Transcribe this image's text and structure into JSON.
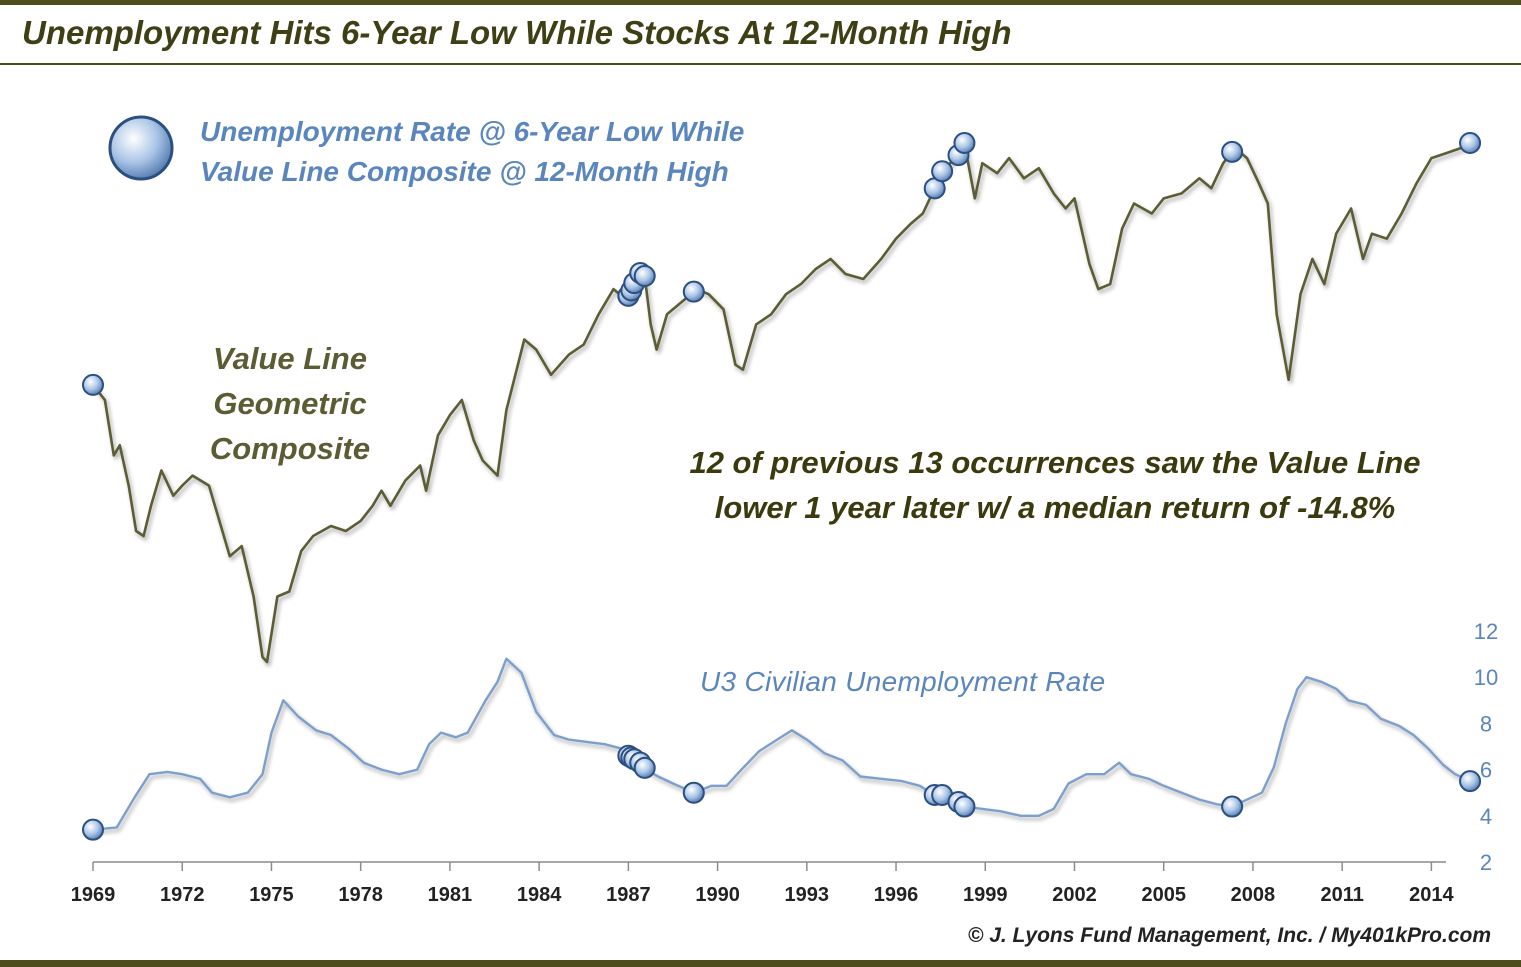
{
  "title": "Unemployment Hits 6-Year Low While Stocks At 12-Month High",
  "legend": {
    "line1": "Unemployment Rate @ 6-Year Low While",
    "line2": "Value Line Composite @ 12-Month High"
  },
  "value_line_label": {
    "line1": "Value Line",
    "line2": "Geometric",
    "line3": "Composite"
  },
  "annotation": {
    "line1": "12 of previous 13 occurrences saw the Value Line",
    "line2": "lower 1 year later w/ a median return of -14.8%"
  },
  "u3_label": "U3 Civilian Unemployment Rate",
  "footer": "© J. Lyons Fund Management, Inc. / My401kPro.com",
  "colors": {
    "value_line": "#5c5c34",
    "unemployment": "#7d9fcc",
    "accent_text": "#5a86bd",
    "marker_fill": "#a9c4e6",
    "marker_stroke": "#2b4f80"
  },
  "chart_data": {
    "type": "line",
    "x_axis": {
      "range": [
        1969,
        2015.5
      ],
      "ticks": [
        1969,
        1972,
        1975,
        1978,
        1981,
        1984,
        1987,
        1990,
        1993,
        1996,
        1999,
        2002,
        2005,
        2008,
        2011,
        2014
      ]
    },
    "y_axis_right": {
      "label": "U3 Civilian Unemployment Rate",
      "range": [
        2,
        12
      ],
      "ticks": [
        2,
        4,
        6,
        8,
        10,
        12
      ]
    },
    "series": [
      {
        "name": "Value Line Geometric Composite",
        "scale": "relative index (no axis shown)",
        "points": [
          [
            1969.0,
            6.6
          ],
          [
            1969.4,
            6.45
          ],
          [
            1969.7,
            5.9
          ],
          [
            1969.9,
            6.0
          ],
          [
            1970.2,
            5.6
          ],
          [
            1970.45,
            5.15
          ],
          [
            1970.7,
            5.1
          ],
          [
            1970.95,
            5.4
          ],
          [
            1971.3,
            5.75
          ],
          [
            1971.7,
            5.5
          ],
          [
            1972.0,
            5.6
          ],
          [
            1972.35,
            5.7
          ],
          [
            1972.9,
            5.6
          ],
          [
            1973.2,
            5.3
          ],
          [
            1973.6,
            4.9
          ],
          [
            1974.0,
            5.0
          ],
          [
            1974.4,
            4.5
          ],
          [
            1974.7,
            3.9
          ],
          [
            1974.85,
            3.85
          ],
          [
            1975.2,
            4.5
          ],
          [
            1975.6,
            4.55
          ],
          [
            1976.0,
            4.95
          ],
          [
            1976.4,
            5.1
          ],
          [
            1977.0,
            5.2
          ],
          [
            1977.5,
            5.15
          ],
          [
            1978.0,
            5.25
          ],
          [
            1978.4,
            5.4
          ],
          [
            1978.7,
            5.55
          ],
          [
            1979.0,
            5.4
          ],
          [
            1979.5,
            5.65
          ],
          [
            1980.0,
            5.8
          ],
          [
            1980.2,
            5.55
          ],
          [
            1980.6,
            6.1
          ],
          [
            1981.0,
            6.3
          ],
          [
            1981.4,
            6.45
          ],
          [
            1981.8,
            6.05
          ],
          [
            1982.1,
            5.85
          ],
          [
            1982.6,
            5.7
          ],
          [
            1982.9,
            6.35
          ],
          [
            1983.5,
            7.05
          ],
          [
            1983.9,
            6.95
          ],
          [
            1984.4,
            6.7
          ],
          [
            1985.0,
            6.9
          ],
          [
            1985.5,
            7.0
          ],
          [
            1986.0,
            7.3
          ],
          [
            1986.5,
            7.55
          ],
          [
            1986.9,
            7.45
          ],
          [
            1987.05,
            7.5
          ],
          [
            1987.35,
            7.72
          ],
          [
            1987.55,
            7.68
          ],
          [
            1987.75,
            7.2
          ],
          [
            1987.95,
            6.95
          ],
          [
            1988.3,
            7.3
          ],
          [
            1988.9,
            7.45
          ],
          [
            1989.3,
            7.55
          ],
          [
            1989.7,
            7.5
          ],
          [
            1990.2,
            7.35
          ],
          [
            1990.6,
            6.8
          ],
          [
            1990.85,
            6.75
          ],
          [
            1991.3,
            7.2
          ],
          [
            1991.8,
            7.3
          ],
          [
            1992.3,
            7.5
          ],
          [
            1992.8,
            7.6
          ],
          [
            1993.3,
            7.75
          ],
          [
            1993.8,
            7.85
          ],
          [
            1994.3,
            7.7
          ],
          [
            1994.9,
            7.65
          ],
          [
            1995.5,
            7.85
          ],
          [
            1996.0,
            8.05
          ],
          [
            1996.5,
            8.2
          ],
          [
            1996.9,
            8.3
          ],
          [
            1997.3,
            8.55
          ],
          [
            1997.55,
            8.72
          ],
          [
            1998.1,
            8.88
          ],
          [
            1998.3,
            9.0
          ],
          [
            1998.65,
            8.45
          ],
          [
            1998.9,
            8.8
          ],
          [
            1999.4,
            8.7
          ],
          [
            1999.8,
            8.85
          ],
          [
            2000.3,
            8.65
          ],
          [
            2000.8,
            8.75
          ],
          [
            2001.3,
            8.5
          ],
          [
            2001.7,
            8.35
          ],
          [
            2002.0,
            8.45
          ],
          [
            2002.5,
            7.8
          ],
          [
            2002.8,
            7.55
          ],
          [
            2003.2,
            7.6
          ],
          [
            2003.6,
            8.15
          ],
          [
            2004.0,
            8.4
          ],
          [
            2004.6,
            8.3
          ],
          [
            2005.0,
            8.45
          ],
          [
            2005.6,
            8.5
          ],
          [
            2006.2,
            8.65
          ],
          [
            2006.6,
            8.55
          ],
          [
            2007.0,
            8.8
          ],
          [
            2007.4,
            8.95
          ],
          [
            2007.8,
            8.85
          ],
          [
            2008.2,
            8.6
          ],
          [
            2008.5,
            8.4
          ],
          [
            2008.8,
            7.3
          ],
          [
            2009.2,
            6.65
          ],
          [
            2009.6,
            7.5
          ],
          [
            2010.0,
            7.85
          ],
          [
            2010.4,
            7.6
          ],
          [
            2010.8,
            8.1
          ],
          [
            2011.3,
            8.35
          ],
          [
            2011.7,
            7.85
          ],
          [
            2012.0,
            8.1
          ],
          [
            2012.5,
            8.05
          ],
          [
            2013.0,
            8.3
          ],
          [
            2013.5,
            8.6
          ],
          [
            2014.0,
            8.85
          ],
          [
            2014.5,
            8.9
          ],
          [
            2015.0,
            8.95
          ],
          [
            2015.3,
            9.0
          ]
        ]
      },
      {
        "name": "U3 Civilian Unemployment Rate",
        "points": [
          [
            1969.0,
            3.4
          ],
          [
            1969.8,
            3.5
          ],
          [
            1970.4,
            4.8
          ],
          [
            1970.9,
            5.8
          ],
          [
            1971.5,
            5.9
          ],
          [
            1972.0,
            5.8
          ],
          [
            1972.6,
            5.6
          ],
          [
            1973.0,
            5.0
          ],
          [
            1973.6,
            4.8
          ],
          [
            1974.2,
            5.0
          ],
          [
            1974.7,
            5.8
          ],
          [
            1975.0,
            7.6
          ],
          [
            1975.4,
            9.0
          ],
          [
            1975.9,
            8.3
          ],
          [
            1976.5,
            7.7
          ],
          [
            1977.0,
            7.5
          ],
          [
            1977.6,
            6.9
          ],
          [
            1978.1,
            6.3
          ],
          [
            1978.7,
            6.0
          ],
          [
            1979.3,
            5.8
          ],
          [
            1979.9,
            6.0
          ],
          [
            1980.3,
            7.1
          ],
          [
            1980.7,
            7.6
          ],
          [
            1981.2,
            7.4
          ],
          [
            1981.6,
            7.6
          ],
          [
            1982.2,
            9.0
          ],
          [
            1982.6,
            9.8
          ],
          [
            1982.9,
            10.8
          ],
          [
            1983.4,
            10.2
          ],
          [
            1983.9,
            8.5
          ],
          [
            1984.5,
            7.5
          ],
          [
            1985.0,
            7.3
          ],
          [
            1985.6,
            7.2
          ],
          [
            1986.2,
            7.1
          ],
          [
            1986.8,
            6.9
          ],
          [
            1987.0,
            6.6
          ],
          [
            1987.4,
            6.3
          ],
          [
            1987.6,
            6.0
          ],
          [
            1988.0,
            5.7
          ],
          [
            1988.5,
            5.4
          ],
          [
            1989.2,
            5.0
          ],
          [
            1989.8,
            5.3
          ],
          [
            1990.3,
            5.3
          ],
          [
            1990.8,
            6.0
          ],
          [
            1991.4,
            6.8
          ],
          [
            1992.0,
            7.3
          ],
          [
            1992.5,
            7.7
          ],
          [
            1993.0,
            7.3
          ],
          [
            1993.6,
            6.7
          ],
          [
            1994.2,
            6.4
          ],
          [
            1994.8,
            5.7
          ],
          [
            1995.5,
            5.6
          ],
          [
            1996.2,
            5.5
          ],
          [
            1996.8,
            5.3
          ],
          [
            1997.3,
            4.9
          ],
          [
            1997.6,
            4.9
          ],
          [
            1998.1,
            4.6
          ],
          [
            1998.3,
            4.4
          ],
          [
            1998.9,
            4.3
          ],
          [
            1999.5,
            4.2
          ],
          [
            2000.2,
            4.0
          ],
          [
            2000.8,
            4.0
          ],
          [
            2001.3,
            4.3
          ],
          [
            2001.8,
            5.4
          ],
          [
            2002.4,
            5.8
          ],
          [
            2003.0,
            5.8
          ],
          [
            2003.5,
            6.3
          ],
          [
            2003.9,
            5.8
          ],
          [
            2004.5,
            5.6
          ],
          [
            2005.0,
            5.3
          ],
          [
            2005.6,
            5.0
          ],
          [
            2006.2,
            4.7
          ],
          [
            2006.8,
            4.5
          ],
          [
            2007.3,
            4.4
          ],
          [
            2007.8,
            4.7
          ],
          [
            2008.3,
            5.0
          ],
          [
            2008.7,
            6.1
          ],
          [
            2009.1,
            8.0
          ],
          [
            2009.5,
            9.5
          ],
          [
            2009.8,
            10.0
          ],
          [
            2010.3,
            9.8
          ],
          [
            2010.8,
            9.5
          ],
          [
            2011.2,
            9.0
          ],
          [
            2011.8,
            8.8
          ],
          [
            2012.3,
            8.2
          ],
          [
            2012.9,
            7.9
          ],
          [
            2013.4,
            7.5
          ],
          [
            2013.9,
            6.9
          ],
          [
            2014.4,
            6.2
          ],
          [
            2014.8,
            5.8
          ],
          [
            2015.3,
            5.5
          ]
        ]
      }
    ],
    "occurrences": [
      1969.0,
      1987.0,
      1987.1,
      1987.2,
      1987.4,
      1987.55,
      1989.2,
      1997.3,
      1997.55,
      1998.1,
      1998.3,
      2007.3,
      2015.3
    ]
  }
}
